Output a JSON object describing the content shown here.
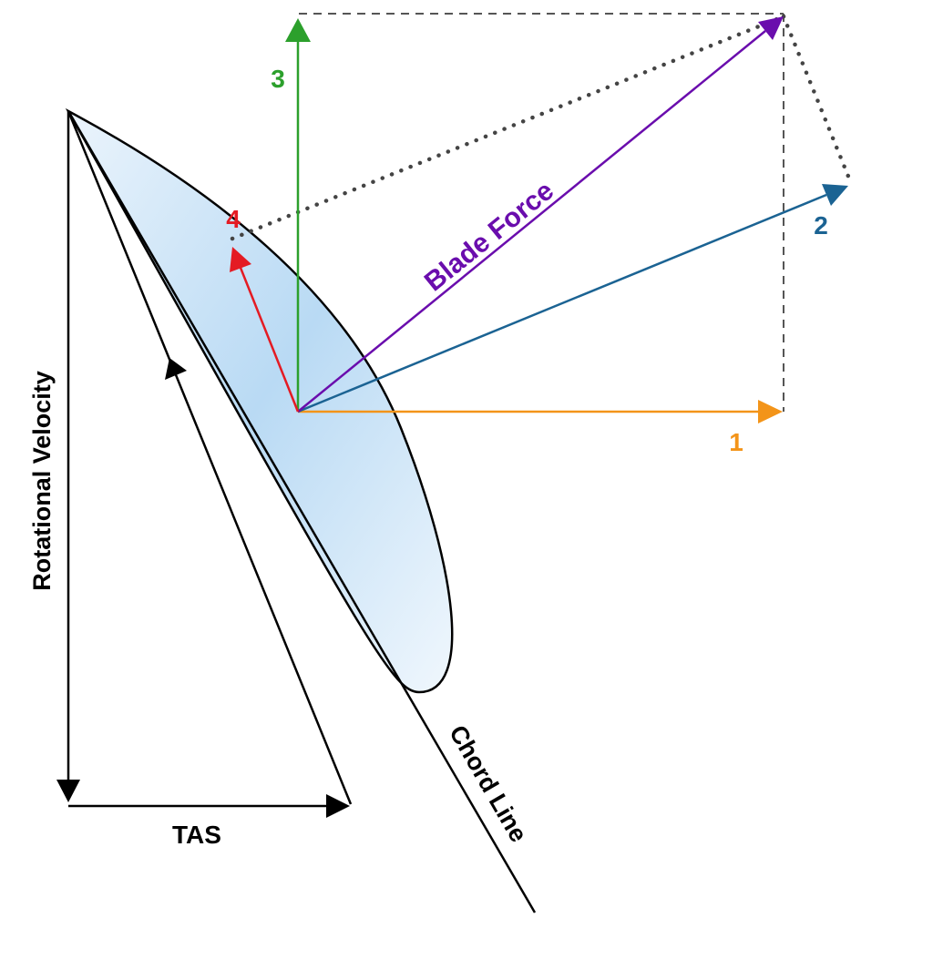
{
  "labels": {
    "force_1": "1",
    "force_2": "2",
    "force_3": "3",
    "force_4": "4",
    "blade_force": "Blade Force",
    "rotational_velocity": "Rotational Velocity",
    "tas": "TAS",
    "chord_line": "Chord Line"
  },
  "colors": {
    "force_1": "#f39419",
    "force_2": "#1b6393",
    "force_3": "#2ca02c",
    "force_4": "#e41b23",
    "blade_force": "#6a0dad",
    "construction_lines": "#555555",
    "outline": "#000000",
    "blade_fill_light": "#ebf4fc",
    "blade_fill_dark": "#b9daf4"
  }
}
